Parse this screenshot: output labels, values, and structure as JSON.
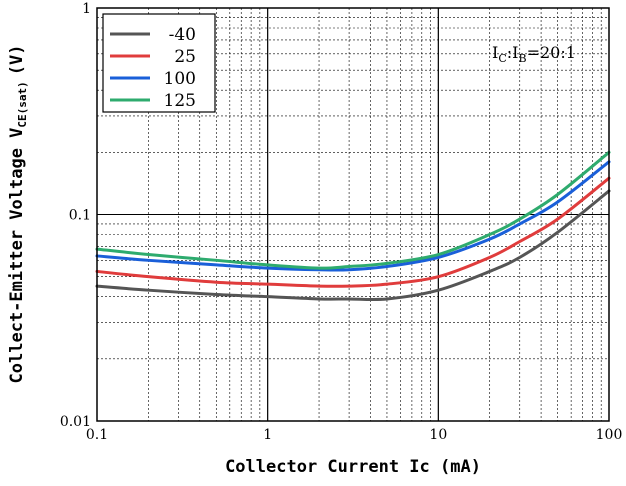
{
  "chart_data": {
    "type": "line",
    "title": "",
    "xlabel": "Collector Current Ic (mA)",
    "ylabel_main": "Collect-Emitter Voltage V",
    "ylabel_sub": "CE(sat)",
    "ylabel_unit": "(V)",
    "xscale": "log",
    "yscale": "log",
    "xlim": [
      0.1,
      100
    ],
    "ylim": [
      0.01,
      1
    ],
    "grid": true,
    "legend_position": "top-left",
    "x_ticks": [
      {
        "value": 0.1,
        "label": "0.1"
      },
      {
        "value": 1,
        "label": "1"
      },
      {
        "value": 10,
        "label": "10"
      },
      {
        "value": 100,
        "label": "100"
      }
    ],
    "y_ticks": [
      {
        "value": 0.01,
        "label": "0.01"
      },
      {
        "value": 0.1,
        "label": "0.1"
      },
      {
        "value": 1,
        "label": "1"
      }
    ],
    "annotation": {
      "main1": "I",
      "sub1": "C",
      "mid": ":I",
      "sub2": "B",
      "tail": "=20:1"
    },
    "series": [
      {
        "name": "-40",
        "color": "#555555",
        "x": [
          0.1,
          0.2,
          0.5,
          1,
          2,
          3,
          5,
          10,
          20,
          30,
          50,
          100
        ],
        "y": [
          0.045,
          0.043,
          0.041,
          0.04,
          0.039,
          0.039,
          0.039,
          0.043,
          0.053,
          0.062,
          0.082,
          0.13
        ]
      },
      {
        "name": "25",
        "color": "#e03c3c",
        "x": [
          0.1,
          0.2,
          0.5,
          1,
          2,
          3,
          5,
          10,
          20,
          30,
          50,
          100
        ],
        "y": [
          0.053,
          0.05,
          0.047,
          0.046,
          0.045,
          0.045,
          0.046,
          0.05,
          0.062,
          0.074,
          0.095,
          0.15
        ]
      },
      {
        "name": "100",
        "color": "#1a5fd9",
        "x": [
          0.1,
          0.2,
          0.5,
          1,
          2,
          3,
          5,
          10,
          20,
          30,
          50,
          100
        ],
        "y": [
          0.063,
          0.06,
          0.057,
          0.055,
          0.054,
          0.054,
          0.056,
          0.062,
          0.076,
          0.09,
          0.115,
          0.18
        ]
      },
      {
        "name": "125",
        "color": "#2eab6e",
        "x": [
          0.1,
          0.2,
          0.5,
          1,
          2,
          3,
          5,
          10,
          20,
          30,
          50,
          100
        ],
        "y": [
          0.068,
          0.064,
          0.06,
          0.057,
          0.055,
          0.056,
          0.058,
          0.064,
          0.08,
          0.095,
          0.125,
          0.2
        ]
      }
    ]
  }
}
